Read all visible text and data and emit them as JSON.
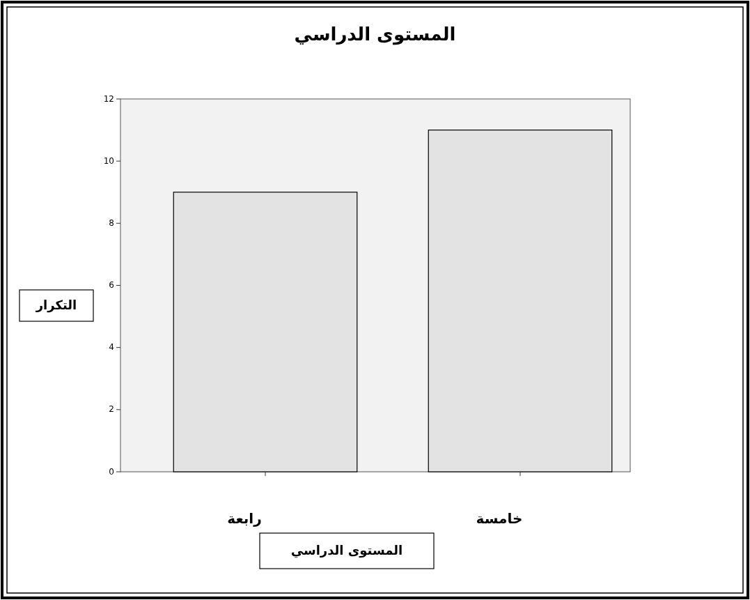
{
  "chart_data": {
    "type": "bar",
    "title": "المستوى الدراسي",
    "xlabel": "المستوى الدراسي",
    "ylabel": "التكرار",
    "categories": [
      "رابعة",
      "خامسة"
    ],
    "values": [
      9,
      11
    ],
    "color": "#e3e3e3",
    "ylim": [
      0,
      12
    ],
    "yticks": [
      0,
      2,
      4,
      6,
      8,
      10,
      12
    ]
  }
}
